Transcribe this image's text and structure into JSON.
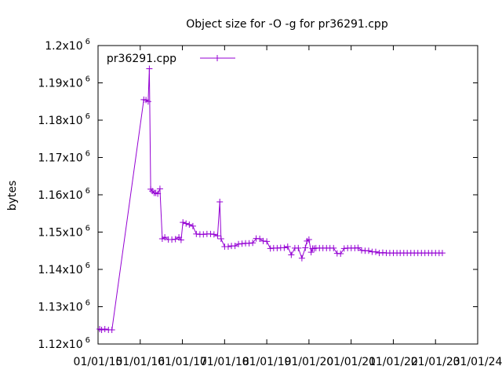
{
  "chart_data": {
    "type": "line",
    "title": "Object size for -O -g for pr36291.cpp",
    "xlabel": "",
    "ylabel": "bytes",
    "x_tick_labels": [
      "01/01/15",
      "01/01/16",
      "01/01/17",
      "01/01/18",
      "01/01/19",
      "01/01/20",
      "01/01/21",
      "01/01/22",
      "01/01/23",
      "01/01/24"
    ],
    "y_tick_labels": [
      {
        "mantissa": "1.12x10",
        "exp": "6"
      },
      {
        "mantissa": "1.13x10",
        "exp": "6"
      },
      {
        "mantissa": "1.14x10",
        "exp": "6"
      },
      {
        "mantissa": "1.15x10",
        "exp": "6"
      },
      {
        "mantissa": "1.16x10",
        "exp": "6"
      },
      {
        "mantissa": "1.17x10",
        "exp": "6"
      },
      {
        "mantissa": "1.18x10",
        "exp": "6"
      },
      {
        "mantissa": "1.19x10",
        "exp": "6"
      },
      {
        "mantissa": "1.2x10",
        "exp": "6"
      }
    ],
    "ylim": [
      1120000,
      1200000
    ],
    "xlim": [
      "2015-01-01",
      "2024-01-01"
    ],
    "legend_position": "top-left",
    "grid": false,
    "series": [
      {
        "name": "pr36291.cpp",
        "color": "#9400d3",
        "marker": "plus",
        "x": [
          "2015-01-15",
          "2015-02-01",
          "2015-03-01",
          "2015-04-01",
          "2015-05-01",
          "2016-02-01",
          "2016-02-20",
          "2016-03-10",
          "2016-03-20",
          "2016-04-01",
          "2016-04-15",
          "2016-05-01",
          "2016-05-15",
          "2016-06-01",
          "2016-06-20",
          "2016-07-10",
          "2016-08-01",
          "2016-09-01",
          "2016-10-01",
          "2016-11-01",
          "2016-12-01",
          "2016-12-20",
          "2017-01-05",
          "2017-02-01",
          "2017-03-01",
          "2017-04-01",
          "2017-05-01",
          "2017-06-01",
          "2017-07-01",
          "2017-08-01",
          "2017-09-01",
          "2017-10-01",
          "2017-11-01",
          "2017-11-20",
          "2017-12-01",
          "2018-01-01",
          "2018-02-01",
          "2018-03-01",
          "2018-04-01",
          "2018-05-01",
          "2018-06-01",
          "2018-07-01",
          "2018-08-01",
          "2018-09-01",
          "2018-10-01",
          "2018-11-01",
          "2018-12-01",
          "2019-01-01",
          "2019-02-01",
          "2019-03-01",
          "2019-04-01",
          "2019-05-01",
          "2019-06-01",
          "2019-07-01",
          "2019-08-01",
          "2019-09-01",
          "2019-10-01",
          "2019-11-01",
          "2019-12-01",
          "2019-12-15",
          "2020-01-01",
          "2020-01-20",
          "2020-02-01",
          "2020-02-15",
          "2020-03-01",
          "2020-04-01",
          "2020-05-01",
          "2020-06-01",
          "2020-07-01",
          "2020-08-01",
          "2020-09-01",
          "2020-10-01",
          "2020-11-01",
          "2020-12-01",
          "2021-01-01",
          "2021-02-01",
          "2021-03-01",
          "2021-04-01",
          "2021-05-01",
          "2021-06-01",
          "2021-07-01",
          "2021-08-01",
          "2021-09-01",
          "2021-10-01",
          "2021-11-01",
          "2021-12-01",
          "2022-01-01",
          "2022-02-01",
          "2022-03-01",
          "2022-04-01",
          "2022-05-01",
          "2022-06-01",
          "2022-07-01",
          "2022-08-01",
          "2022-09-01",
          "2022-10-01",
          "2022-11-01",
          "2022-12-01",
          "2023-01-01",
          "2023-02-01",
          "2023-03-01"
        ],
        "y": [
          1124000,
          1123800,
          1124000,
          1123800,
          1123800,
          1185500,
          1185400,
          1185000,
          1193800,
          1161500,
          1161000,
          1160500,
          1160500,
          1160300,
          1161600,
          1148200,
          1148600,
          1148000,
          1148000,
          1148100,
          1148600,
          1147900,
          1152600,
          1152300,
          1152000,
          1151600,
          1149500,
          1149400,
          1149400,
          1149500,
          1149500,
          1149400,
          1149000,
          1158100,
          1148200,
          1146100,
          1146100,
          1146300,
          1146300,
          1146800,
          1146900,
          1147000,
          1147000,
          1147100,
          1148300,
          1148200,
          1147600,
          1147500,
          1145600,
          1145700,
          1145700,
          1145800,
          1145800,
          1146100,
          1143900,
          1145700,
          1145700,
          1143000,
          1145800,
          1147600,
          1148000,
          1144600,
          1145600,
          1145600,
          1145700,
          1145700,
          1145700,
          1145700,
          1145700,
          1145700,
          1144300,
          1144200,
          1145600,
          1145700,
          1145700,
          1145700,
          1145800,
          1145100,
          1145000,
          1145000,
          1144700,
          1144700,
          1144400,
          1144500,
          1144400,
          1144400,
          1144400,
          1144400,
          1144400,
          1144400,
          1144400,
          1144400,
          1144400,
          1144400,
          1144400,
          1144400,
          1144400,
          1144400,
          1144400,
          1144400,
          1144400
        ]
      }
    ]
  }
}
